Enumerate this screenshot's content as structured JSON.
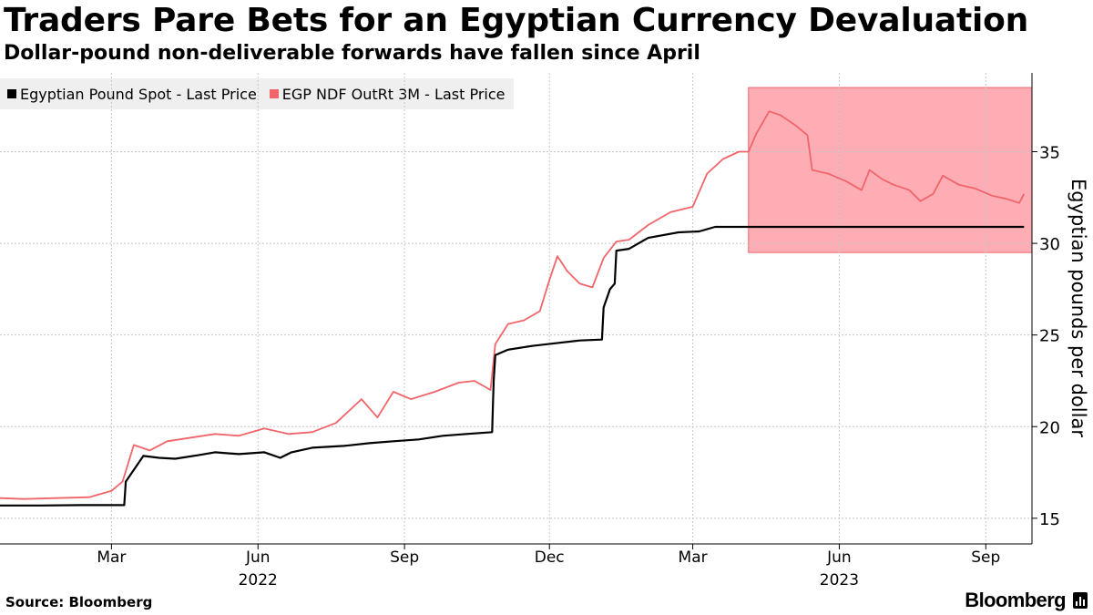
{
  "header": {
    "title": "Traders Pare Bets for an Egyptian Currency Devaluation",
    "subtitle": "Dollar-pound non-deliverable forwards have fallen since April"
  },
  "footer": {
    "source": "Source: Bloomberg",
    "brand": "Bloomberg"
  },
  "colors": {
    "spot": "#000000",
    "ndf": "#f0656a",
    "highlight": "#ffadb5",
    "grid": "#c8c8c8",
    "legend_bg": "#efefef"
  },
  "icons": [
    "bloomberg-logo-icon"
  ],
  "chart_data": {
    "type": "line",
    "title": "Traders Pare Bets for an Egyptian Currency Devaluation",
    "subtitle": "Dollar-pound non-deliverable forwards have fallen since April",
    "ylabel": "Egyptian pounds per dollar",
    "ylim": [
      13.6,
      39.3
    ],
    "y_ticks": [
      15,
      20,
      25,
      30,
      35
    ],
    "xlim": [
      "2021-12-21",
      "2023-09-30"
    ],
    "x_ticks": [
      {
        "date": "2022-03-01",
        "label": "Mar"
      },
      {
        "date": "2022-06-01",
        "label": "Jun"
      },
      {
        "date": "2022-09-01",
        "label": "Sep"
      },
      {
        "date": "2022-12-01",
        "label": "Dec"
      },
      {
        "date": "2023-03-01",
        "label": "Mar"
      },
      {
        "date": "2023-06-01",
        "label": "Jun"
      },
      {
        "date": "2023-09-01",
        "label": "Sep"
      }
    ],
    "year_labels": [
      {
        "label": "2022",
        "date": "2022-06-01"
      },
      {
        "label": "2023",
        "date": "2023-06-01"
      }
    ],
    "grid": true,
    "axis_position": "right",
    "legend_position": "top-left",
    "highlight_region": {
      "x": [
        "2023-04-05",
        "2023-09-30"
      ],
      "y": [
        29.5,
        38.5
      ]
    },
    "series": [
      {
        "name": "Egyptian Pound Spot - Last Price",
        "color": "#000000",
        "points": [
          [
            "2021-12-21",
            15.7
          ],
          [
            "2022-01-15",
            15.7
          ],
          [
            "2022-02-10",
            15.72
          ],
          [
            "2022-03-09",
            15.72
          ],
          [
            "2022-03-10",
            17.0
          ],
          [
            "2022-03-21",
            18.4
          ],
          [
            "2022-03-31",
            18.3
          ],
          [
            "2022-04-10",
            18.25
          ],
          [
            "2022-04-25",
            18.45
          ],
          [
            "2022-05-05",
            18.6
          ],
          [
            "2022-05-20",
            18.5
          ],
          [
            "2022-06-05",
            18.6
          ],
          [
            "2022-06-15",
            18.3
          ],
          [
            "2022-06-22",
            18.6
          ],
          [
            "2022-07-05",
            18.85
          ],
          [
            "2022-07-25",
            18.95
          ],
          [
            "2022-08-10",
            19.1
          ],
          [
            "2022-08-25",
            19.2
          ],
          [
            "2022-09-10",
            19.3
          ],
          [
            "2022-09-25",
            19.5
          ],
          [
            "2022-10-10",
            19.6
          ],
          [
            "2022-10-26",
            19.7
          ],
          [
            "2022-10-27",
            22.5
          ],
          [
            "2022-10-28",
            23.9
          ],
          [
            "2022-11-05",
            24.2
          ],
          [
            "2022-11-20",
            24.4
          ],
          [
            "2022-12-05",
            24.55
          ],
          [
            "2022-12-20",
            24.7
          ],
          [
            "2023-01-03",
            24.75
          ],
          [
            "2023-01-04",
            26.5
          ],
          [
            "2023-01-08",
            27.5
          ],
          [
            "2023-01-11",
            27.8
          ],
          [
            "2023-01-12",
            29.6
          ],
          [
            "2023-01-20",
            29.7
          ],
          [
            "2023-02-01",
            30.3
          ],
          [
            "2023-02-20",
            30.6
          ],
          [
            "2023-03-05",
            30.65
          ],
          [
            "2023-03-15",
            30.9
          ],
          [
            "2023-04-10",
            30.9
          ],
          [
            "2023-05-10",
            30.9
          ],
          [
            "2023-06-10",
            30.9
          ],
          [
            "2023-07-10",
            30.9
          ],
          [
            "2023-08-10",
            30.9
          ],
          [
            "2023-09-25",
            30.9
          ]
        ]
      },
      {
        "name": "EGP NDF OutRt 3M - Last Price",
        "color": "#f0656a",
        "points": [
          [
            "2021-12-21",
            16.1
          ],
          [
            "2022-01-05",
            16.05
          ],
          [
            "2022-01-25",
            16.1
          ],
          [
            "2022-02-15",
            16.15
          ],
          [
            "2022-03-01",
            16.5
          ],
          [
            "2022-03-08",
            17.0
          ],
          [
            "2022-03-15",
            19.0
          ],
          [
            "2022-03-25",
            18.7
          ],
          [
            "2022-04-05",
            19.2
          ],
          [
            "2022-04-20",
            19.4
          ],
          [
            "2022-05-05",
            19.6
          ],
          [
            "2022-05-20",
            19.5
          ],
          [
            "2022-06-05",
            19.9
          ],
          [
            "2022-06-20",
            19.6
          ],
          [
            "2022-07-05",
            19.7
          ],
          [
            "2022-07-20",
            20.2
          ],
          [
            "2022-08-05",
            21.5
          ],
          [
            "2022-08-15",
            20.5
          ],
          [
            "2022-08-25",
            21.9
          ],
          [
            "2022-09-05",
            21.5
          ],
          [
            "2022-09-20",
            21.9
          ],
          [
            "2022-10-05",
            22.4
          ],
          [
            "2022-10-15",
            22.5
          ],
          [
            "2022-10-25",
            22.0
          ],
          [
            "2022-10-28",
            24.5
          ],
          [
            "2022-11-05",
            25.6
          ],
          [
            "2022-11-15",
            25.8
          ],
          [
            "2022-11-25",
            26.3
          ],
          [
            "2022-12-01",
            28.0
          ],
          [
            "2022-12-06",
            29.3
          ],
          [
            "2022-12-12",
            28.5
          ],
          [
            "2022-12-20",
            27.8
          ],
          [
            "2022-12-28",
            27.6
          ],
          [
            "2023-01-04",
            29.2
          ],
          [
            "2023-01-12",
            30.1
          ],
          [
            "2023-01-20",
            30.2
          ],
          [
            "2023-02-01",
            31.0
          ],
          [
            "2023-02-15",
            31.7
          ],
          [
            "2023-03-01",
            32.0
          ],
          [
            "2023-03-10",
            33.8
          ],
          [
            "2023-03-20",
            34.6
          ],
          [
            "2023-03-30",
            35.0
          ],
          [
            "2023-04-05",
            35.0
          ],
          [
            "2023-04-10",
            36.0
          ],
          [
            "2023-04-18",
            37.2
          ],
          [
            "2023-04-25",
            37.0
          ],
          [
            "2023-05-05",
            36.4
          ],
          [
            "2023-05-12",
            35.9
          ],
          [
            "2023-05-15",
            34.0
          ],
          [
            "2023-05-25",
            33.8
          ],
          [
            "2023-06-05",
            33.4
          ],
          [
            "2023-06-15",
            32.9
          ],
          [
            "2023-06-20",
            34.0
          ],
          [
            "2023-06-28",
            33.5
          ],
          [
            "2023-07-05",
            33.2
          ],
          [
            "2023-07-15",
            32.9
          ],
          [
            "2023-07-22",
            32.3
          ],
          [
            "2023-07-30",
            32.7
          ],
          [
            "2023-08-05",
            33.7
          ],
          [
            "2023-08-15",
            33.2
          ],
          [
            "2023-08-25",
            33.0
          ],
          [
            "2023-09-05",
            32.6
          ],
          [
            "2023-09-15",
            32.4
          ],
          [
            "2023-09-22",
            32.2
          ],
          [
            "2023-09-25",
            32.7
          ]
        ]
      }
    ]
  }
}
